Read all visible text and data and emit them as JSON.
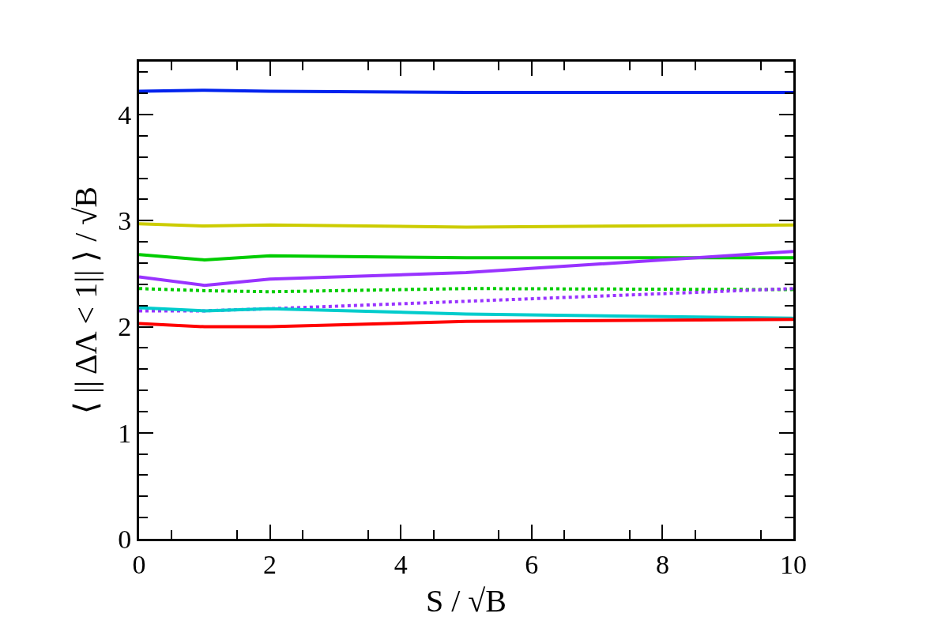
{
  "chart_data": {
    "type": "line",
    "xlabel": "S / √B",
    "ylabel": "⟨ || ΔΛ < 1|| ⟩ / √B",
    "x": [
      0,
      1,
      2,
      5,
      10
    ],
    "series": [
      {
        "color": "#0022ee",
        "values": [
          4.22,
          4.23,
          4.22,
          4.21,
          4.21
        ]
      },
      {
        "color": "#cccc00",
        "values": [
          2.97,
          2.95,
          2.96,
          2.94,
          2.96
        ]
      },
      {
        "color": "#00cc00",
        "values": [
          2.68,
          2.63,
          2.67,
          2.65,
          2.65
        ]
      },
      {
        "color": "#9933ff",
        "values": [
          2.47,
          2.39,
          2.45,
          2.51,
          2.71
        ]
      },
      {
        "color": "#00cc00",
        "line_style": "dotted",
        "values": [
          2.36,
          2.34,
          2.33,
          2.36,
          2.35
        ]
      },
      {
        "color": "#9933ff",
        "line_style": "dotted",
        "values": [
          2.15,
          2.15,
          2.17,
          2.24,
          2.36
        ]
      },
      {
        "color": "#00cccc",
        "values": [
          2.18,
          2.15,
          2.17,
          2.12,
          2.08
        ]
      },
      {
        "color": "#ff0000",
        "values": [
          2.03,
          2.0,
          2.0,
          2.05,
          2.07
        ]
      }
    ],
    "xlim": [
      0,
      10
    ],
    "xticks": [
      0,
      2,
      4,
      6,
      8,
      10
    ],
    "ylim": [
      0,
      4.5
    ],
    "yticks": [
      0,
      1,
      2,
      3,
      4
    ],
    "line_style": "solid",
    "marker": "none"
  }
}
